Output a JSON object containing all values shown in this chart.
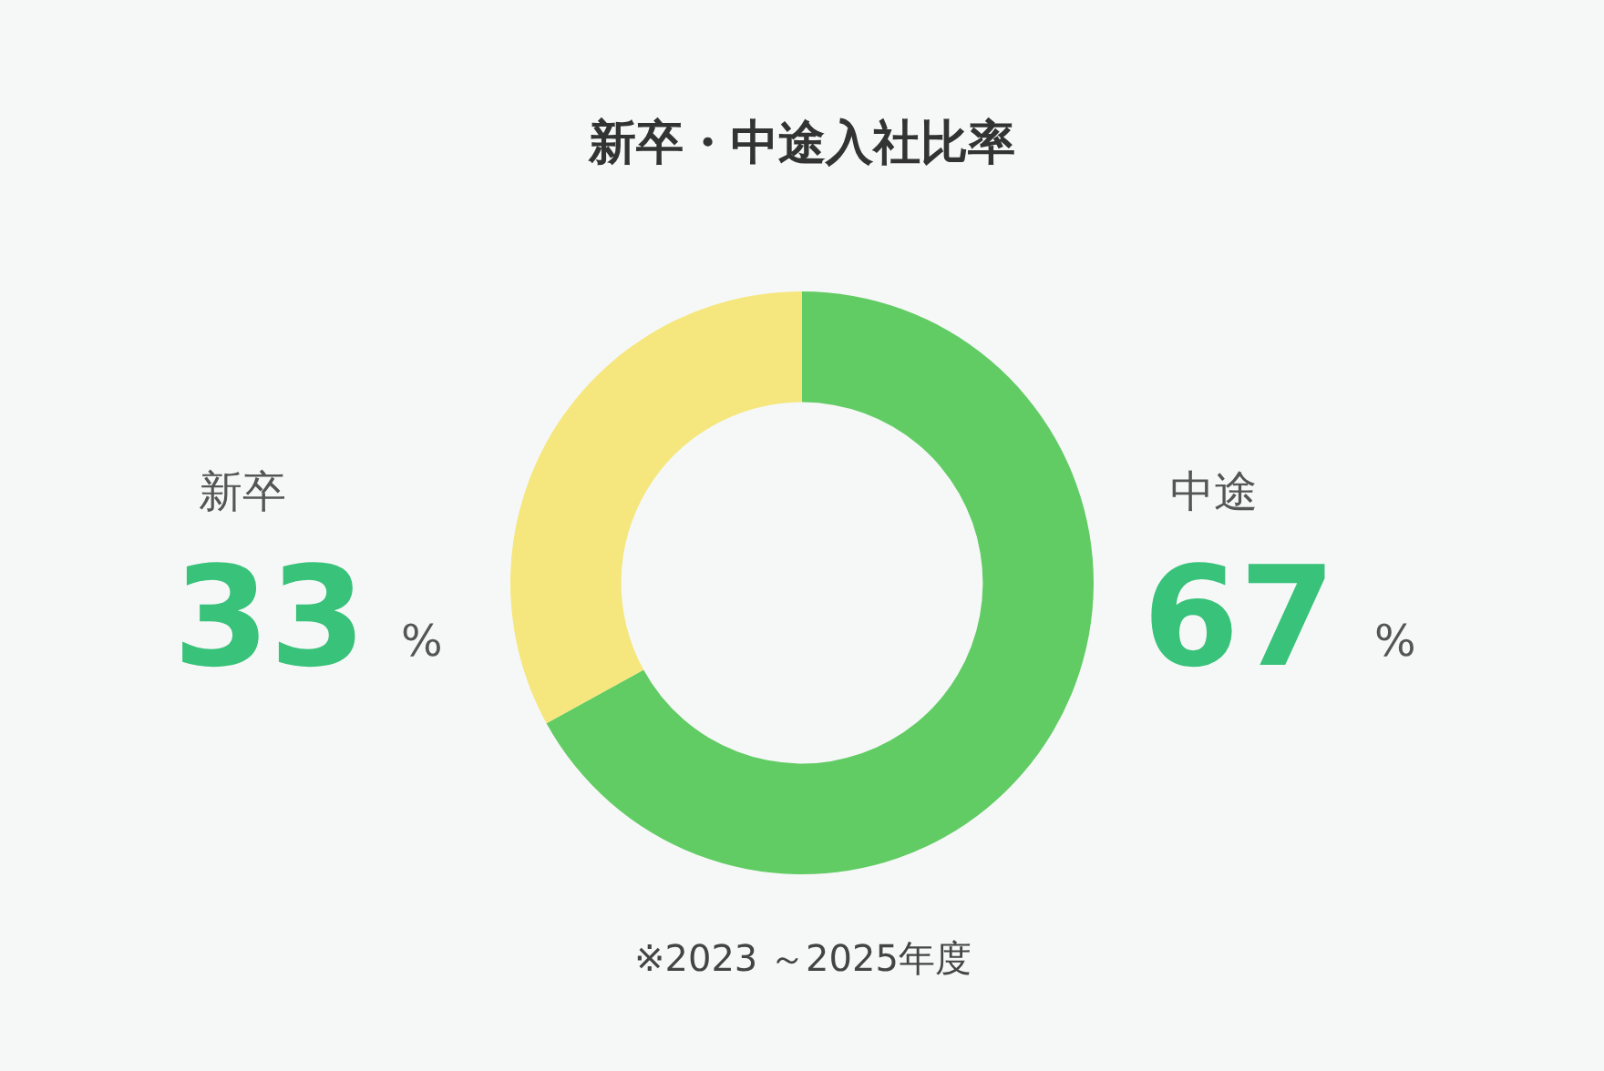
{
  "chart_data": {
    "type": "donut",
    "title": "新卒・中途入社比率",
    "categories": [
      "中途",
      "新卒"
    ],
    "values": [
      67,
      33
    ],
    "colors": [
      "#62cc64",
      "#f5e77d"
    ],
    "value_labels": [
      "67 %",
      "33 %"
    ],
    "legend": false,
    "annotations": [
      "※2023 ～2025年度"
    ]
  }
}
